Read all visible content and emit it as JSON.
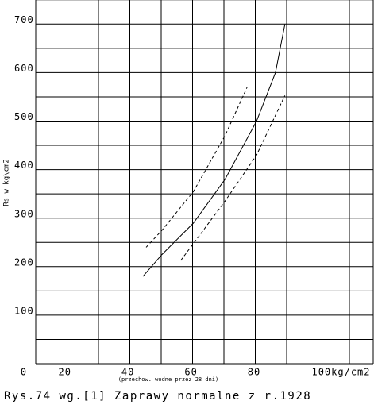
{
  "chart_data": {
    "type": "line",
    "caption": "Rys.74 wg.[1] Zaprawy normalne z r.1928",
    "y_label": "Rs w kg\\cm2",
    "x_label": "(przechow. wodne przez 28 dni)",
    "xlim": [
      10,
      117
    ],
    "ylim": [
      0,
      750
    ],
    "xticks": [
      0,
      20,
      40,
      60,
      80,
      {
        "value": 100,
        "label": "100kg/cm2"
      }
    ],
    "yticks": [
      100,
      200,
      300,
      400,
      500,
      600,
      700
    ],
    "grid": true,
    "series": [
      {
        "color": "#000000",
        "dash": false,
        "x": [
          44,
          50,
          60,
          70,
          80,
          86,
          89
        ],
        "values": [
          180,
          225,
          290,
          380,
          500,
          600,
          700
        ]
      },
      {
        "color": "#000000",
        "dash": true,
        "x": [
          45,
          50,
          60,
          70,
          77
        ],
        "values": [
          240,
          275,
          355,
          470,
          570
        ]
      },
      {
        "color": "#000000",
        "dash": true,
        "x": [
          56,
          70,
          80,
          89
        ],
        "values": [
          213,
          335,
          430,
          553
        ]
      }
    ]
  }
}
